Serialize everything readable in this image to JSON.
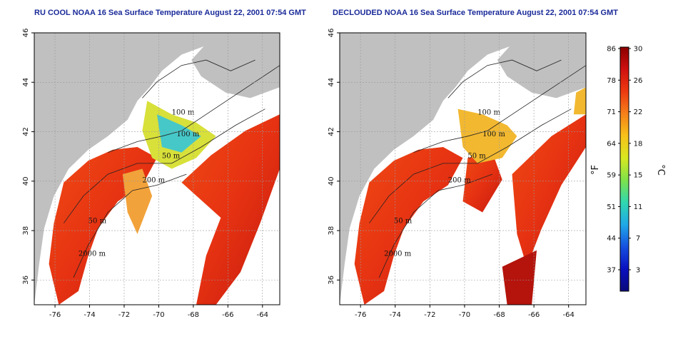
{
  "panels": [
    {
      "id": "ru-cool",
      "title": "RU COOL NOAA 16 Sea Surface Temperature August 22, 2001 07:54 GMT",
      "cloud_filtered": false
    },
    {
      "id": "declouded",
      "title": "DECLOUDED NOAA 16 Sea Surface Temperature August 22, 2001 07:54 GMT",
      "cloud_filtered": true
    }
  ],
  "map_axes": {
    "lon_ticks": [
      "-76",
      "-74",
      "-72",
      "-70",
      "-68",
      "-66",
      "-64"
    ],
    "lat_ticks": [
      "36",
      "38",
      "40",
      "42",
      "44",
      "46"
    ],
    "lon_range": [
      -77.2,
      -63.0
    ],
    "lat_range": [
      35.0,
      46.0
    ]
  },
  "contour_labels": [
    "100 m",
    "100 m",
    "50 m",
    "200 m",
    "50 m",
    "2000 m"
  ],
  "colorbar": {
    "fahrenheit_ticks": [
      "86",
      "78",
      "71",
      "64",
      "59",
      "51",
      "44",
      "37"
    ],
    "celsius_ticks": [
      "30",
      "26",
      "22",
      "18",
      "15",
      "11",
      "7",
      "3"
    ],
    "fahrenheit_unit": "°F",
    "celsius_unit": "°C",
    "colors": [
      "#8b0000",
      "#d01010",
      "#ee3a10",
      "#f6801a",
      "#f7c21a",
      "#d8e820",
      "#7ee24a",
      "#30d8b0",
      "#20a8e8",
      "#1650e0",
      "#0a10c0",
      "#0a0a7a"
    ]
  },
  "colors": {
    "land": "#c0c0c0",
    "cloud": "#ffffff",
    "title": "#1a2a9a"
  }
}
